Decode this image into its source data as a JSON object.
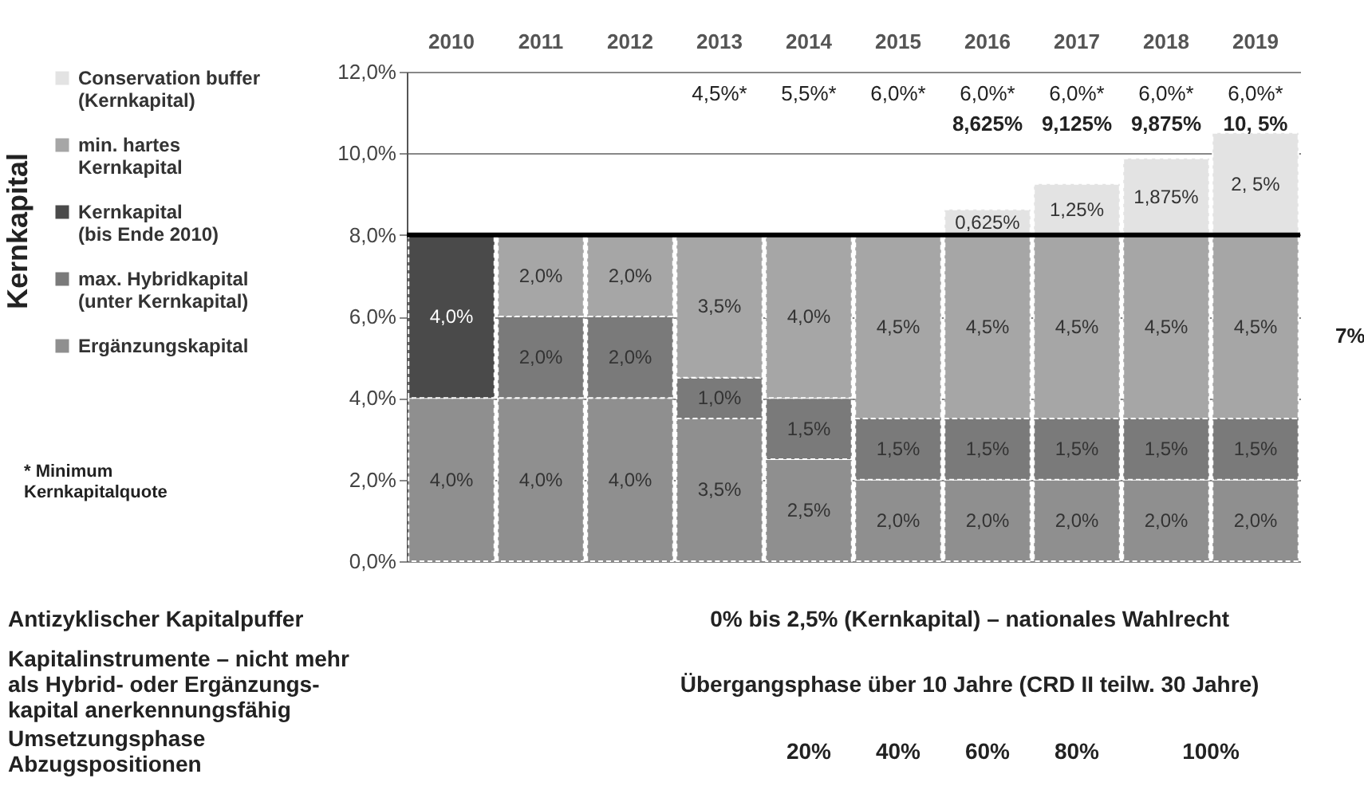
{
  "chart_data": {
    "type": "bar",
    "stacked": true,
    "categories": [
      "2010",
      "2011",
      "2012",
      "2013",
      "2014",
      "2015",
      "2016",
      "2017",
      "2018",
      "2019"
    ],
    "series": [
      {
        "name": "Ergänzungskapital",
        "color": "#8f8f8f",
        "values": [
          4.0,
          4.0,
          4.0,
          3.5,
          2.5,
          2.0,
          2.0,
          2.0,
          2.0,
          2.0
        ],
        "value_labels": [
          "4,0%",
          "4,0%",
          "4,0%",
          "3,5%",
          "2,5%",
          "2,0%",
          "2,0%",
          "2,0%",
          "2,0%",
          "2,0%"
        ]
      },
      {
        "name": "max. Hybridkapital\n(unter Kernkapital)",
        "color": "#7a7a7a",
        "values": [
          null,
          2.0,
          2.0,
          1.0,
          1.5,
          1.5,
          1.5,
          1.5,
          1.5,
          1.5
        ],
        "value_labels": [
          null,
          "2,0%",
          "2,0%",
          "1,0%",
          "1,5%",
          "1,5%",
          "1,5%",
          "1,5%",
          "1,5%",
          "1,5%"
        ]
      },
      {
        "name": "Kernkapital\n(bis Ende 2010)",
        "color": "#4a4a4a",
        "values": [
          4.0,
          null,
          null,
          null,
          null,
          null,
          null,
          null,
          null,
          null
        ],
        "value_labels": [
          "4,0%",
          null,
          null,
          null,
          null,
          null,
          null,
          null,
          null,
          null
        ]
      },
      {
        "name": "min. hartes\nKernkapital",
        "color": "#a6a6a6",
        "values": [
          null,
          2.0,
          2.0,
          3.5,
          4.0,
          4.5,
          4.5,
          4.5,
          4.5,
          4.5
        ],
        "value_labels": [
          null,
          "2,0%",
          "2,0%",
          "3,5%",
          "4,0%",
          "4,5%",
          "4,5%",
          "4,5%",
          "4,5%",
          "4,5%"
        ]
      },
      {
        "name": "Conservation buffer\n(Kernkapital)",
        "color": "#e3e3e3",
        "values": [
          null,
          null,
          null,
          null,
          null,
          null,
          0.625,
          1.25,
          1.875,
          2.5
        ],
        "value_labels": [
          null,
          null,
          null,
          null,
          null,
          null,
          "0,625%",
          "1,25%",
          "1,875%",
          "2, 5%"
        ]
      }
    ],
    "ylim": [
      0,
      12
    ],
    "yticks": [
      {
        "value": 0,
        "label": "0,0%"
      },
      {
        "value": 2,
        "label": "2,0%"
      },
      {
        "value": 4,
        "label": "4,0%"
      },
      {
        "value": 6,
        "label": "6,0%"
      },
      {
        "value": 8,
        "label": "8,0%"
      },
      {
        "value": 10,
        "label": "10,0%"
      },
      {
        "value": 12,
        "label": "12,0%"
      }
    ],
    "grid": "y",
    "legend": "left",
    "ref_lines": [
      {
        "axis": "y",
        "value": 8,
        "color": "#000000"
      }
    ],
    "annotations": [
      "Kernkapital",
      "* Minimum\nKernkapitalquote",
      "7%",
      "Antizyklischer Kapitalpuffer",
      "0% bis 2,5% (Kernkapital) – nationales Wahlrecht",
      "Kapitalinstrumente – nicht mehr\nals Hybrid- oder Ergänzungs-\nkapital anerkennungsfähig",
      "Übergangsphase über 10 Jahre (CRD II teilw. 30 Jahre)",
      "Umsetzungsphase\nAbzugspositionen",
      "20%",
      "40%",
      "60%",
      "80%",
      "100%",
      "4,5%*",
      "5,5%*",
      "6,0%*",
      "6,0%*",
      "6,0%*",
      "6,0%*",
      "6,0%*",
      "8,625%",
      "9,125%",
      "9,875%",
      "10, 5%"
    ]
  }
}
